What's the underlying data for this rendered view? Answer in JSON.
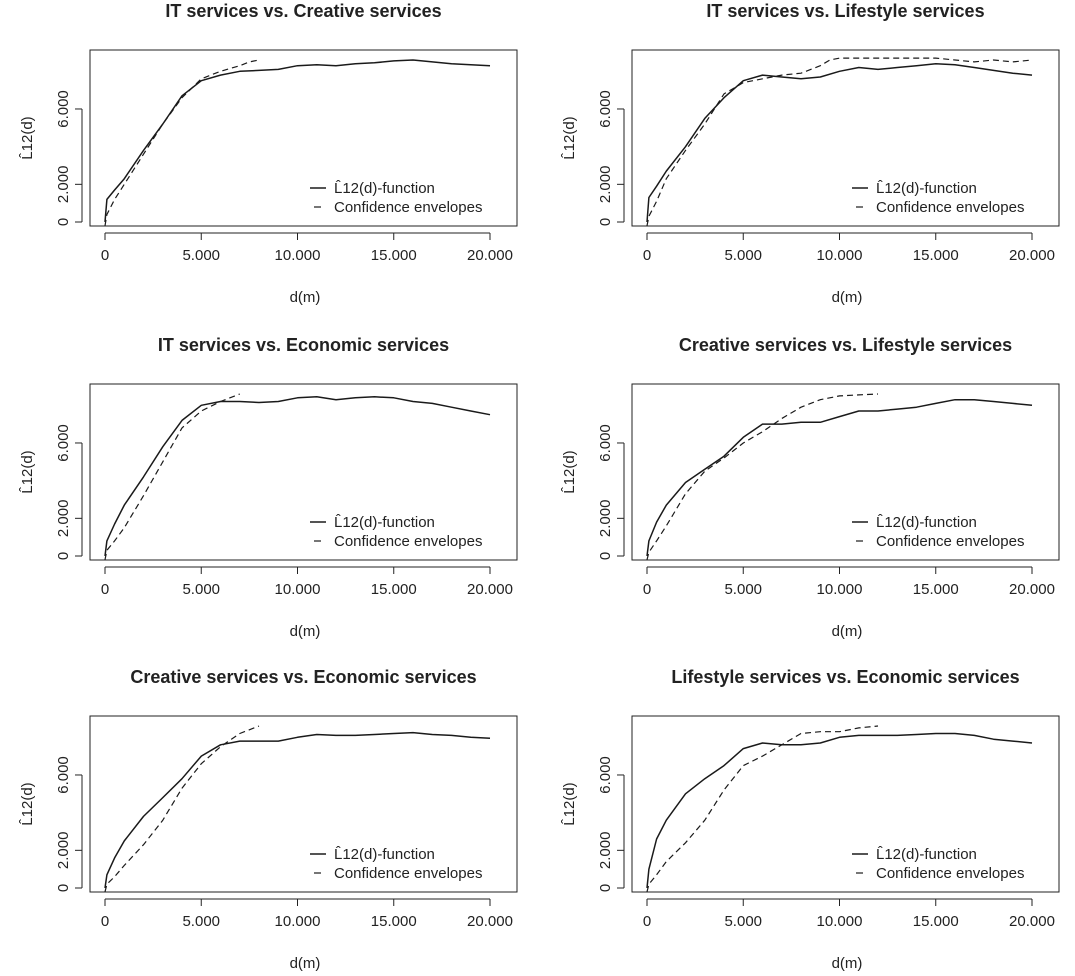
{
  "chart_data": [
    {
      "type": "line",
      "title": "IT services vs. Creative services",
      "xlabel": "d(m)",
      "ylabel": "L̂12(d)",
      "xlim": [
        0,
        20000
      ],
      "ylim": [
        0,
        8600
      ],
      "xticks": [
        "0",
        "5.000",
        "10.000",
        "15.000",
        "20.000"
      ],
      "yticks": [
        "0",
        "2.000",
        "6.000"
      ],
      "legend_position": "bottom-right",
      "series": [
        {
          "name": "L̂12(d)-function",
          "style": "solid",
          "width": 1.5,
          "x": [
            0,
            100,
            500,
            1000,
            2000,
            3000,
            4000,
            5000,
            6000,
            7000,
            8000,
            9000,
            10000,
            11000,
            12000,
            13000,
            14000,
            15000,
            16000,
            17000,
            18000,
            19000,
            20000
          ],
          "y": [
            0,
            1200,
            1700,
            2300,
            3800,
            5200,
            6700,
            7500,
            7800,
            8000,
            8050,
            8100,
            8300,
            8350,
            8300,
            8400,
            8450,
            8550,
            8600,
            8500,
            8400,
            8350,
            8300
          ]
        },
        {
          "name": "Confidence envelopes",
          "style": "dashed",
          "width": 1.2,
          "x": [
            0,
            100,
            500,
            1000,
            2000,
            3000,
            4000,
            5000,
            6000,
            7000,
            7500,
            8000
          ],
          "y": [
            -200,
            400,
            1200,
            2000,
            3600,
            5200,
            6600,
            7600,
            8000,
            8300,
            8500,
            8600
          ]
        }
      ]
    },
    {
      "type": "line",
      "title": "IT services vs. Lifestyle services",
      "xlabel": "d(m)",
      "ylabel": "L̂12(d)",
      "xlim": [
        0,
        20000
      ],
      "ylim": [
        0,
        8600
      ],
      "xticks": [
        "0",
        "5.000",
        "10.000",
        "15.000",
        "20.000"
      ],
      "yticks": [
        "0",
        "2.000",
        "6.000"
      ],
      "legend_position": "bottom-right",
      "series": [
        {
          "name": "L̂12(d)-function",
          "style": "solid",
          "width": 1.5,
          "x": [
            0,
            100,
            500,
            1000,
            2000,
            3000,
            4000,
            5000,
            6000,
            7000,
            8000,
            9000,
            10000,
            11000,
            12000,
            13000,
            14000,
            15000,
            16000,
            17000,
            18000,
            19000,
            20000
          ],
          "y": [
            0,
            1300,
            1900,
            2700,
            4000,
            5500,
            6600,
            7500,
            7800,
            7700,
            7600,
            7700,
            8000,
            8200,
            8100,
            8200,
            8300,
            8400,
            8350,
            8200,
            8050,
            7900,
            7800
          ]
        },
        {
          "name": "Confidence envelopes",
          "style": "dashed",
          "width": 1.2,
          "x": [
            0,
            100,
            500,
            1000,
            2000,
            3000,
            4000,
            5000,
            6000,
            7000,
            8000,
            9000,
            9500,
            10000,
            12000,
            14000,
            15000,
            16000,
            17000,
            18000,
            19000,
            20000
          ],
          "y": [
            -200,
            300,
            1100,
            2300,
            3800,
            5200,
            6800,
            7400,
            7600,
            7800,
            7900,
            8300,
            8600,
            8700,
            8700,
            8700,
            8700,
            8600,
            8500,
            8600,
            8500,
            8600
          ]
        }
      ]
    },
    {
      "type": "line",
      "title": "IT services vs. Economic services",
      "xlabel": "d(m)",
      "ylabel": "L̂12(d)",
      "xlim": [
        0,
        20000
      ],
      "ylim": [
        0,
        8600
      ],
      "xticks": [
        "0",
        "5.000",
        "10.000",
        "15.000",
        "20.000"
      ],
      "yticks": [
        "0",
        "2.000",
        "6.000"
      ],
      "legend_position": "bottom-right",
      "series": [
        {
          "name": "L̂12(d)-function",
          "style": "solid",
          "width": 1.5,
          "x": [
            0,
            100,
            500,
            1000,
            2000,
            3000,
            4000,
            5000,
            6000,
            7000,
            8000,
            9000,
            10000,
            11000,
            12000,
            13000,
            14000,
            15000,
            16000,
            17000,
            18000,
            19000,
            20000
          ],
          "y": [
            0,
            800,
            1700,
            2700,
            4200,
            5800,
            7200,
            8000,
            8200,
            8200,
            8150,
            8200,
            8400,
            8450,
            8300,
            8400,
            8450,
            8400,
            8200,
            8100,
            7900,
            7700,
            7500
          ]
        },
        {
          "name": "Confidence envelopes",
          "style": "dashed",
          "width": 1.2,
          "x": [
            0,
            100,
            500,
            1000,
            2000,
            3000,
            4000,
            5000,
            6000,
            7000
          ],
          "y": [
            -200,
            300,
            800,
            1500,
            3200,
            5000,
            6800,
            7700,
            8200,
            8600
          ]
        }
      ]
    },
    {
      "type": "line",
      "title": "Creative services vs. Lifestyle services",
      "xlabel": "d(m)",
      "ylabel": "L̂12(d)",
      "xlim": [
        0,
        20000
      ],
      "ylim": [
        0,
        8600
      ],
      "xticks": [
        "0",
        "5.000",
        "10.000",
        "15.000",
        "20.000"
      ],
      "yticks": [
        "0",
        "2.000",
        "6.000"
      ],
      "legend_position": "bottom-right",
      "series": [
        {
          "name": "L̂12(d)-function",
          "style": "solid",
          "width": 1.5,
          "x": [
            0,
            100,
            500,
            1000,
            2000,
            3000,
            4000,
            5000,
            6000,
            7000,
            8000,
            9000,
            10000,
            11000,
            12000,
            13000,
            14000,
            15000,
            16000,
            17000,
            18000,
            19000,
            20000
          ],
          "y": [
            0,
            800,
            1800,
            2700,
            3900,
            4600,
            5300,
            6300,
            7000,
            7000,
            7100,
            7100,
            7400,
            7700,
            7700,
            7800,
            7900,
            8100,
            8300,
            8300,
            8200,
            8100,
            8000
          ]
        },
        {
          "name": "Confidence envelopes",
          "style": "dashed",
          "width": 1.2,
          "x": [
            0,
            100,
            500,
            1000,
            2000,
            3000,
            4000,
            5000,
            6000,
            7000,
            8000,
            9000,
            10000,
            11000,
            12000
          ],
          "y": [
            -200,
            200,
            800,
            1600,
            3300,
            4500,
            5200,
            6000,
            6600,
            7300,
            7900,
            8300,
            8500,
            8550,
            8600
          ]
        }
      ]
    },
    {
      "type": "line",
      "title": "Creative services vs. Economic services",
      "xlabel": "d(m)",
      "ylabel": "L̂12(d)",
      "xlim": [
        0,
        20000
      ],
      "ylim": [
        0,
        8600
      ],
      "xticks": [
        "0",
        "5.000",
        "10.000",
        "15.000",
        "20.000"
      ],
      "yticks": [
        "0",
        "2.000",
        "6.000"
      ],
      "legend_position": "bottom-right",
      "series": [
        {
          "name": "L̂12(d)-function",
          "style": "solid",
          "width": 1.5,
          "x": [
            0,
            100,
            500,
            1000,
            2000,
            3000,
            4000,
            5000,
            6000,
            7000,
            8000,
            9000,
            10000,
            11000,
            12000,
            13000,
            14000,
            15000,
            16000,
            17000,
            18000,
            19000,
            20000
          ],
          "y": [
            0,
            700,
            1600,
            2500,
            3800,
            4800,
            5800,
            7000,
            7600,
            7800,
            7800,
            7800,
            8000,
            8150,
            8100,
            8100,
            8150,
            8200,
            8250,
            8150,
            8100,
            8000,
            7950
          ]
        },
        {
          "name": "Confidence envelopes",
          "style": "dashed",
          "width": 1.2,
          "x": [
            0,
            100,
            500,
            1000,
            2000,
            3000,
            4000,
            5000,
            6000,
            7000,
            8000
          ],
          "y": [
            -200,
            200,
            600,
            1200,
            2300,
            3600,
            5300,
            6600,
            7500,
            8200,
            8600
          ]
        }
      ]
    },
    {
      "type": "line",
      "title": "Lifestyle services vs. Economic services",
      "xlabel": "d(m)",
      "ylabel": "L̂12(d)",
      "xlim": [
        0,
        20000
      ],
      "ylim": [
        0,
        8600
      ],
      "xticks": [
        "0",
        "5.000",
        "10.000",
        "15.000",
        "20.000"
      ],
      "yticks": [
        "0",
        "2.000",
        "6.000"
      ],
      "legend_position": "bottom-right",
      "series": [
        {
          "name": "L̂12(d)-function",
          "style": "solid",
          "width": 1.5,
          "x": [
            0,
            100,
            500,
            1000,
            2000,
            3000,
            4000,
            5000,
            6000,
            7000,
            8000,
            9000,
            10000,
            11000,
            12000,
            13000,
            14000,
            15000,
            16000,
            17000,
            18000,
            19000,
            20000
          ],
          "y": [
            0,
            1000,
            2600,
            3600,
            5000,
            5800,
            6500,
            7400,
            7700,
            7600,
            7600,
            7700,
            8000,
            8100,
            8100,
            8100,
            8150,
            8200,
            8200,
            8100,
            7900,
            7800,
            7700
          ]
        },
        {
          "name": "Confidence envelopes",
          "style": "dashed",
          "width": 1.2,
          "x": [
            0,
            100,
            500,
            1000,
            2000,
            3000,
            4000,
            5000,
            6000,
            7000,
            8000,
            9000,
            10000,
            11000,
            12000
          ],
          "y": [
            -200,
            200,
            700,
            1400,
            2400,
            3600,
            5200,
            6500,
            7000,
            7600,
            8200,
            8300,
            8300,
            8500,
            8600
          ]
        }
      ]
    }
  ]
}
